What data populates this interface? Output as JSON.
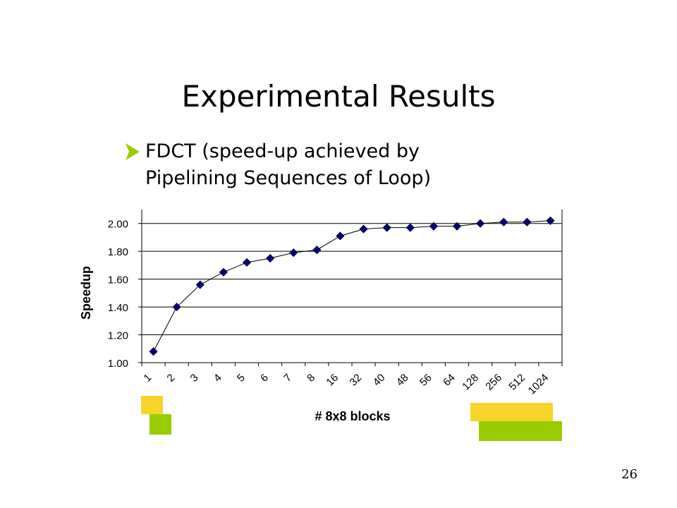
{
  "slide": {
    "title": "Experimental Results",
    "bullet": "FDCT (speed-up achieved by Pipelining Sequences of Loop)",
    "bullet_icon": "arrowhead-bullet-icon",
    "page_number": "26"
  },
  "colors": {
    "grid": "#000000",
    "series": "#000080",
    "bullet": "#9acd00",
    "deco_yellow": "#f7d52a",
    "deco_green": "#99cc00"
  },
  "chart_data": {
    "type": "line",
    "title": "",
    "xlabel": "# 8x8 blocks",
    "ylabel": "Speedup",
    "categories": [
      "1",
      "2",
      "3",
      "4",
      "5",
      "6",
      "7",
      "8",
      "16",
      "32",
      "40",
      "48",
      "56",
      "64",
      "128",
      "256",
      "512",
      "1024"
    ],
    "series": [
      {
        "values": [
          1.08,
          1.4,
          1.56,
          1.65,
          1.72,
          1.75,
          1.79,
          1.81,
          1.91,
          1.96,
          1.97,
          1.97,
          1.98,
          1.98,
          2.0,
          2.01,
          2.01,
          2.02
        ]
      }
    ],
    "ylim": [
      1.0,
      2.1
    ],
    "yticks": [
      "1.00",
      "1.20",
      "1.40",
      "1.60",
      "1.80",
      "2.00"
    ],
    "grid": true,
    "legend": "none",
    "marker": "diamond"
  }
}
